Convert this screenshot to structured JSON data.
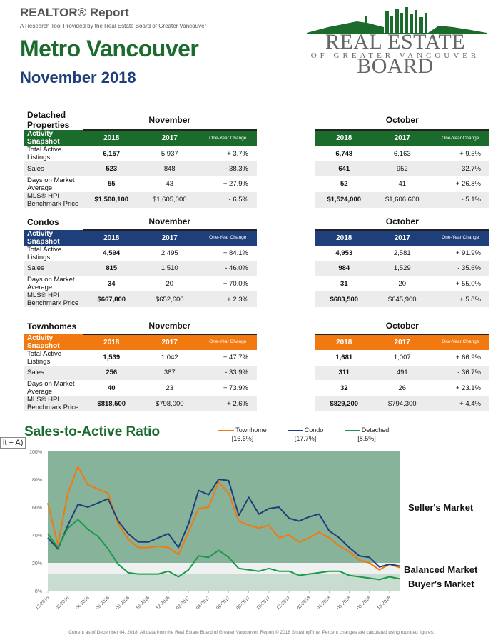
{
  "header": {
    "report": "REALTOR® Report",
    "subtitle": "A Research Tool Provided by the Real Estate Board of Greater Vancouver",
    "region": "Metro Vancouver",
    "month": "November 2018",
    "logo_name": "REAL ESTATE BOARD",
    "logo_sub": "OF GREATER VANCOUVER"
  },
  "groups": [
    "November",
    "October"
  ],
  "col_labels": {
    "y1": "2018",
    "y2": "2017",
    "chg": "One-Year Change"
  },
  "row_labels": [
    "Total Active Listings",
    "Sales",
    "Days on Market Average",
    "MLS® HPI Benchmark Price"
  ],
  "sections": [
    {
      "title": "Detached Properties",
      "bar": "Activity Snapshot",
      "color": "#1a6b2c",
      "rows": [
        {
          "n18": "6,157",
          "n17": "5,937",
          "nchg": "+ 3.7%",
          "o18": "6,748",
          "o17": "6,163",
          "ochg": "+ 9.5%"
        },
        {
          "n18": "523",
          "n17": "848",
          "nchg": "- 38.3%",
          "o18": "641",
          "o17": "952",
          "ochg": "- 32.7%"
        },
        {
          "n18": "55",
          "n17": "43",
          "nchg": "+ 27.9%",
          "o18": "52",
          "o17": "41",
          "ochg": "+ 26.8%"
        },
        {
          "n18": "$1,500,100",
          "n17": "$1,605,000",
          "nchg": "- 6.5%",
          "o18": "$1,524,000",
          "o17": "$1,606,600",
          "ochg": "- 5.1%"
        }
      ]
    },
    {
      "title": "Condos",
      "bar": "Activity Snapshot",
      "color": "#1f3f7a",
      "rows": [
        {
          "n18": "4,594",
          "n17": "2,495",
          "nchg": "+ 84.1%",
          "o18": "4,953",
          "o17": "2,581",
          "ochg": "+ 91.9%"
        },
        {
          "n18": "815",
          "n17": "1,510",
          "nchg": "- 46.0%",
          "o18": "984",
          "o17": "1,529",
          "ochg": "- 35.6%"
        },
        {
          "n18": "34",
          "n17": "20",
          "nchg": "+ 70.0%",
          "o18": "31",
          "o17": "20",
          "ochg": "+ 55.0%"
        },
        {
          "n18": "$667,800",
          "n17": "$652,600",
          "nchg": "+ 2.3%",
          "o18": "$683,500",
          "o17": "$645,900",
          "ochg": "+ 5.8%"
        }
      ]
    },
    {
      "title": "Townhomes",
      "bar": "Activity Snapshot",
      "color": "#f2790f",
      "rows": [
        {
          "n18": "1,539",
          "n17": "1,042",
          "nchg": "+ 47.7%",
          "o18": "1,681",
          "o17": "1,007",
          "ochg": "+ 66.9%"
        },
        {
          "n18": "256",
          "n17": "387",
          "nchg": "- 33.9%",
          "o18": "311",
          "o17": "491",
          "ochg": "- 36.7%"
        },
        {
          "n18": "40",
          "n17": "23",
          "nchg": "+ 73.9%",
          "o18": "32",
          "o17": "26",
          "ochg": "+ 23.1%"
        },
        {
          "n18": "$818,500",
          "n17": "$798,000",
          "nchg": "+ 2.6%",
          "o18": "$829,200",
          "o17": "$794,300",
          "ochg": "+ 4.4%"
        }
      ]
    }
  ],
  "chart": {
    "title": "Sales-to-Active Ratio",
    "tooltip": "lt + A)",
    "legend": [
      {
        "name": "Townhome",
        "value": "[16.6%]",
        "color": "#f2790f"
      },
      {
        "name": "Condo",
        "value": "[17.7%]",
        "color": "#1f3f7a"
      },
      {
        "name": "Detached",
        "value": "[8.5%]",
        "color": "#1a9a4a"
      }
    ],
    "markets": {
      "seller": "Seller's Market",
      "balanced": "Balanced Market",
      "buyer": "Buyer's Market"
    }
  },
  "chart_data": {
    "type": "line",
    "x": [
      "12-2015",
      "01-2016",
      "02-2016",
      "03-2016",
      "04-2016",
      "05-2016",
      "06-2016",
      "07-2016",
      "08-2016",
      "09-2016",
      "10-2016",
      "11-2016",
      "12-2016",
      "01-2017",
      "02-2017",
      "03-2017",
      "04-2017",
      "05-2017",
      "06-2017",
      "07-2017",
      "08-2017",
      "09-2017",
      "10-2017",
      "11-2017",
      "12-2017",
      "01-2018",
      "02-2018",
      "03-2018",
      "04-2018",
      "05-2018",
      "06-2018",
      "07-2018",
      "08-2018",
      "09-2018",
      "10-2018",
      "11-2018"
    ],
    "tick_labels": [
      "12-2015",
      "02-2016",
      "04-2016",
      "06-2016",
      "08-2016",
      "10-2016",
      "12-2016",
      "02-2017",
      "04-2017",
      "06-2017",
      "08-2017",
      "10-2017",
      "12-2017",
      "02-2018",
      "04-2018",
      "06-2018",
      "08-2018",
      "10-2018"
    ],
    "yticks": [
      "0%",
      "20%",
      "40%",
      "60%",
      "80%",
      "100%"
    ],
    "ylim": [
      0,
      100
    ],
    "zones": {
      "buyer": [
        0,
        12
      ],
      "balanced": [
        12,
        20
      ],
      "seller": [
        20,
        100
      ]
    },
    "series": [
      {
        "name": "Townhome",
        "color": "#f2790f",
        "values": [
          63,
          33,
          70,
          89,
          76,
          73,
          70,
          48,
          37,
          31,
          31,
          32,
          31,
          26,
          42,
          59,
          60,
          78,
          70,
          50,
          47,
          45,
          47,
          38,
          40,
          35,
          38,
          42,
          38,
          32,
          28,
          22,
          20,
          15,
          19,
          16.6
        ]
      },
      {
        "name": "Condo",
        "color": "#1f3f7a",
        "values": [
          38,
          30,
          47,
          62,
          60,
          63,
          66,
          50,
          41,
          35,
          35,
          38,
          41,
          31,
          48,
          72,
          69,
          80,
          79,
          54,
          67,
          55,
          59,
          60,
          52,
          50,
          53,
          55,
          43,
          38,
          31,
          25,
          24,
          17,
          19,
          17.7
        ]
      },
      {
        "name": "Detached",
        "color": "#1a9a4a",
        "values": [
          41,
          31,
          45,
          51,
          44,
          39,
          30,
          19,
          13,
          12,
          12,
          12,
          14,
          10,
          15,
          25,
          24,
          29,
          24,
          16,
          15,
          14,
          16,
          14,
          14,
          11,
          12,
          13,
          14,
          14,
          11,
          10,
          9,
          8,
          10,
          8.5
        ]
      }
    ]
  },
  "footer": "Current as of December 04, 2018. All data from the Real Estate Board of Greater Vancouver. Report © 2018 ShowingTime. Percent changes are calculated using rounded figures."
}
